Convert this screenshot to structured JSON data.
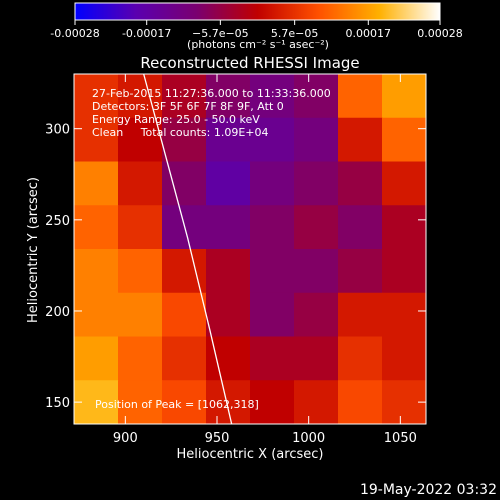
{
  "chart_data": {
    "type": "heatmap",
    "title": "Reconstructed RHESSI Image",
    "xlabel": "Heliocentric X (arcsec)",
    "ylabel": "Heliocentric Y (arcsec)",
    "xlim": [
      872,
      1064
    ],
    "ylim": [
      138,
      330
    ],
    "x_ticks": [
      900,
      950,
      1000,
      1050
    ],
    "y_ticks": [
      150,
      200,
      250,
      300
    ],
    "colorbar": {
      "label": "(photons cm⁻² s⁻¹ asec⁻²)",
      "range": [
        -0.00028,
        0.00028
      ],
      "tick_values": [
        -0.00028,
        -0.00017,
        -5.7e-05,
        5.7e-05,
        0.00017,
        0.00028
      ],
      "tick_labels": [
        "-0.00028",
        "-0.00017",
        "−5.7e−05",
        "5.7e−05",
        "0.00017",
        "0.00028"
      ],
      "colormap": [
        "#0000ff",
        "#5a00b0",
        "#7a0070",
        "#c00000",
        "#ff5000",
        "#ffb000",
        "#ffffff"
      ]
    },
    "annotations": [
      "27-Feb-2015 11:27:36.000 to 11:33:36.000",
      "Detectors: 3F 5F 6F 7F 8F 9F, Att 0",
      "Energy Range: 25.0 - 50.0 keV",
      "Clean     Total counts: 1.09E+04"
    ],
    "peak_label": "Position of Peak = [1062,318]",
    "limb_curve": {
      "x": [
        910,
        922,
        934,
        946,
        958
      ],
      "y": [
        330,
        285,
        240,
        190,
        138
      ]
    },
    "intensity_grid": {
      "rows": 8,
      "cols": 8,
      "note_levels": "0=min (blue) .. 1=max (white)",
      "values": [
        [
          0.6,
          0.55,
          0.45,
          0.35,
          0.3,
          0.35,
          0.7,
          0.8
        ],
        [
          0.6,
          0.5,
          0.4,
          0.25,
          0.25,
          0.3,
          0.55,
          0.7
        ],
        [
          0.75,
          0.55,
          0.35,
          0.2,
          0.3,
          0.35,
          0.4,
          0.55
        ],
        [
          0.7,
          0.6,
          0.3,
          0.3,
          0.35,
          0.4,
          0.35,
          0.45
        ],
        [
          0.75,
          0.7,
          0.55,
          0.45,
          0.35,
          0.35,
          0.4,
          0.45
        ],
        [
          0.75,
          0.75,
          0.65,
          0.45,
          0.35,
          0.4,
          0.55,
          0.55
        ],
        [
          0.8,
          0.7,
          0.6,
          0.5,
          0.45,
          0.45,
          0.6,
          0.55
        ],
        [
          0.85,
          0.7,
          0.65,
          0.55,
          0.5,
          0.55,
          0.65,
          0.6
        ]
      ]
    }
  },
  "footer": {
    "timestamp": "19-May-2022 03:32"
  }
}
